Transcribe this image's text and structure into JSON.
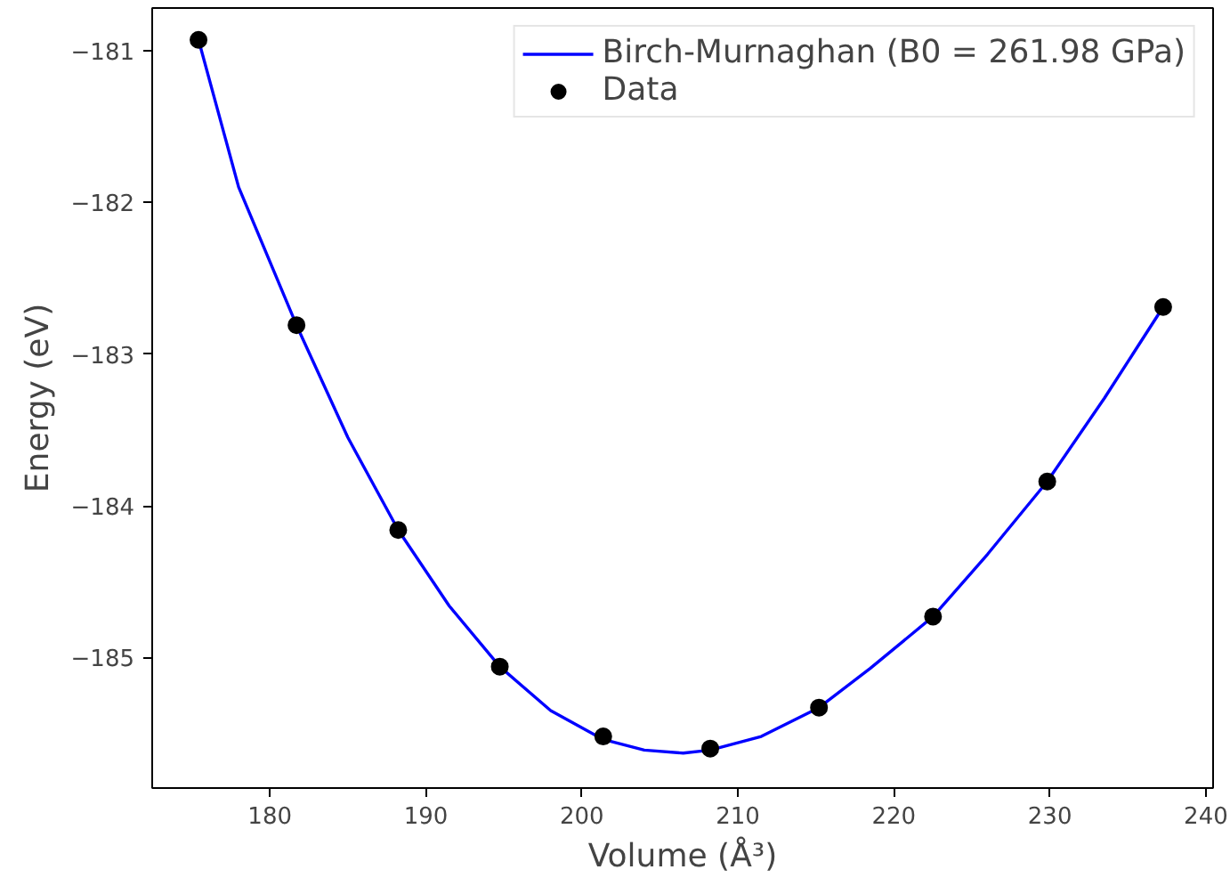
{
  "chart_data": {
    "type": "scatter",
    "xlabel": "Volume (Å³)",
    "ylabel": "Energy (eV)",
    "xlim": [
      172.46,
      240.46
    ],
    "ylim": [
      -185.86,
      -180.72
    ],
    "xticks": [
      180,
      190,
      200,
      210,
      220,
      230,
      240
    ],
    "yticks": [
      {
        "value": -181,
        "label": "−181"
      },
      {
        "value": -182,
        "label": "−182"
      },
      {
        "value": -183,
        "label": "−183"
      },
      {
        "value": -184,
        "label": "−184"
      },
      {
        "value": -185,
        "label": "−185"
      }
    ],
    "grid": false,
    "legend": "top right",
    "series": [
      {
        "name": "Birch-Murnaghan (B0 = 261.98 GPa)",
        "type": "line",
        "color": "#0000ff",
        "marker": "none",
        "line_style": "solid",
        "x": [
          175.43,
          178,
          181.71,
          185,
          188.23,
          191.5,
          194.74,
          198,
          201.37,
          204,
          206.5,
          208.23,
          211.5,
          215.2,
          218.5,
          222.51,
          226,
          229.83,
          233.5,
          237.26
        ],
        "values": [
          -180.93,
          -181.9,
          -182.81,
          -183.55,
          -184.16,
          -184.66,
          -185.06,
          -185.35,
          -185.54,
          -185.61,
          -185.63,
          -185.61,
          -185.52,
          -185.33,
          -185.07,
          -184.73,
          -184.32,
          -183.84,
          -183.29,
          -182.69
        ]
      },
      {
        "name": "Data",
        "color": "#000000",
        "marker": "circle",
        "x": [
          175.43,
          181.71,
          188.23,
          194.74,
          201.37,
          208.23,
          215.2,
          222.51,
          229.83,
          237.26
        ],
        "values": [
          -180.93,
          -182.81,
          -184.16,
          -185.06,
          -185.52,
          -185.6,
          -185.33,
          -184.73,
          -183.84,
          -182.69
        ]
      }
    ]
  }
}
